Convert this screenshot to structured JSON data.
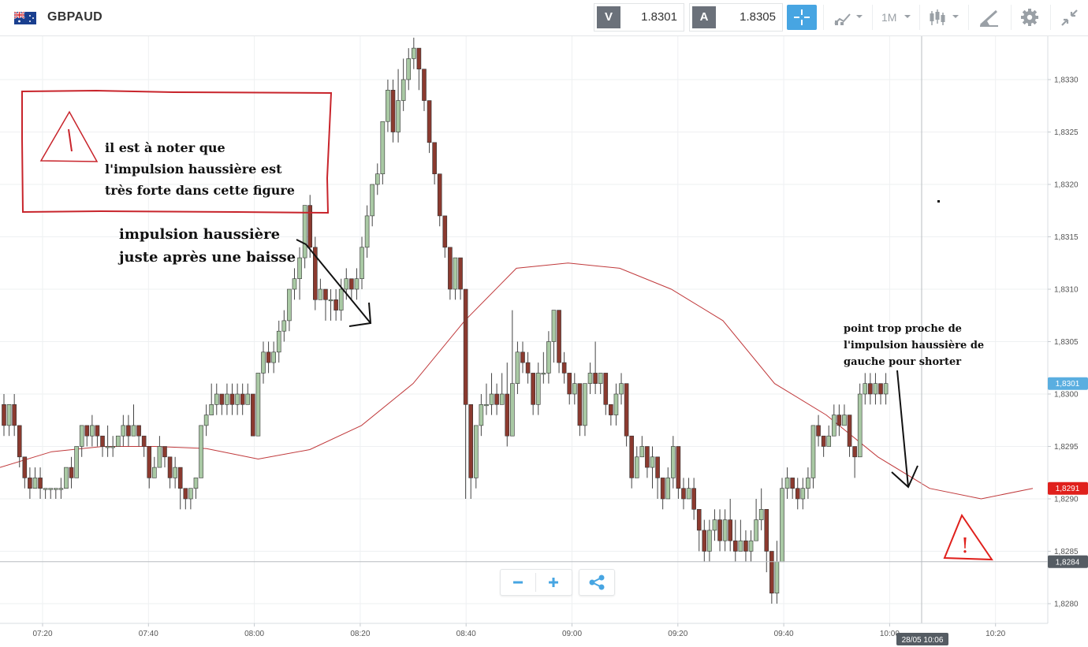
{
  "header": {
    "symbol": "GBPAUD",
    "sell_label": "V",
    "sell_price": "1.8301",
    "buy_label": "A",
    "buy_price": "1.8305",
    "timeframe": "1M",
    "icons": [
      "uk-au-flag-icon",
      "crosshair-icon",
      "chart-type-icon",
      "timeframe-dropdown",
      "candles-icon",
      "draw-tool-icon",
      "gear-icon",
      "collapse-icon"
    ]
  },
  "annotations": {
    "box_text": [
      "il est à noter que",
      "l'impulsion haussière est",
      "très forte dans cette figure"
    ],
    "arrow_text": [
      "impulsion haussière",
      "juste après une baisse"
    ],
    "right_text": [
      "point trop proche de",
      "l'impulsion haussière de",
      "gauche pour shorter"
    ],
    "warning_marker": "!"
  },
  "chart_data": {
    "type": "candlestick",
    "symbol": "GBPAUD",
    "timeframe": "1M",
    "ylim": [
      1.82785,
      1.83335
    ],
    "y_ticks": [
      "1,8280",
      "1,8285",
      "1,8290",
      "1,8295",
      "1,8300",
      "1,8305",
      "1,8310",
      "1,8315",
      "1,8320",
      "1,8325",
      "1,8330"
    ],
    "x_ticks": [
      "07:20",
      "07:40",
      "08:00",
      "08:20",
      "08:40",
      "09:00",
      "09:20",
      "09:40",
      "10:00",
      "10:20"
    ],
    "price_tags": [
      {
        "label": "1,8301",
        "value": 1.8301,
        "color": "#5aaee0"
      },
      {
        "label": "1,8291",
        "value": 1.8291,
        "color": "#e0201c"
      },
      {
        "label": "1,8284",
        "value": 1.8284,
        "color": "#555c63"
      }
    ],
    "crosshair_time": "28/05 10:06",
    "moving_average": [
      1.8293,
      1.82945,
      1.8295,
      1.8295,
      1.82948,
      1.82938,
      1.82947,
      1.8297,
      1.8301,
      1.8307,
      1.8312,
      1.83125,
      1.8312,
      1.831,
      1.8307,
      1.8301,
      1.8298,
      1.8294,
      1.8291,
      1.829,
      1.8291
    ],
    "candles": [
      [
        1.8299,
        1.8297,
        1.83,
        1.8296
      ],
      [
        1.8297,
        1.8299,
        1.8299,
        1.8296
      ],
      [
        1.8299,
        1.8297,
        1.83,
        1.8296
      ],
      [
        1.8297,
        1.8294,
        1.8297,
        1.8293
      ],
      [
        1.8294,
        1.8292,
        1.8294,
        1.8291
      ],
      [
        1.8292,
        1.8291,
        1.8293,
        1.829
      ],
      [
        1.8291,
        1.8292,
        1.8293,
        1.8291
      ],
      [
        1.8292,
        1.8291,
        1.8293,
        1.829
      ],
      [
        1.8291,
        1.8291,
        1.8291,
        1.829
      ],
      [
        1.8291,
        1.8291,
        1.8291,
        1.829
      ],
      [
        1.8291,
        1.8291,
        1.8291,
        1.829
      ],
      [
        1.8291,
        1.8291,
        1.8292,
        1.829
      ],
      [
        1.8291,
        1.8293,
        1.8293,
        1.8291
      ],
      [
        1.8293,
        1.8292,
        1.8294,
        1.8291
      ],
      [
        1.8292,
        1.8295,
        1.8295,
        1.8292
      ],
      [
        1.8295,
        1.8297,
        1.8297,
        1.8294
      ],
      [
        1.8297,
        1.8296,
        1.8297,
        1.8295
      ],
      [
        1.8296,
        1.8297,
        1.8298,
        1.8295
      ],
      [
        1.8297,
        1.8296,
        1.8297,
        1.8295
      ],
      [
        1.8296,
        1.8295,
        1.8296,
        1.8294
      ],
      [
        1.8295,
        1.8295,
        1.8297,
        1.8294
      ],
      [
        1.8295,
        1.8295,
        1.8296,
        1.8294
      ],
      [
        1.8295,
        1.8296,
        1.8296,
        1.8295
      ],
      [
        1.8296,
        1.8297,
        1.8298,
        1.8295
      ],
      [
        1.8297,
        1.8296,
        1.8298,
        1.8295
      ],
      [
        1.8296,
        1.8297,
        1.8299,
        1.8296
      ],
      [
        1.8297,
        1.8296,
        1.8297,
        1.8295
      ],
      [
        1.8296,
        1.8295,
        1.8296,
        1.8294
      ],
      [
        1.8295,
        1.8292,
        1.8295,
        1.8291
      ],
      [
        1.8292,
        1.8293,
        1.8294,
        1.8292
      ],
      [
        1.8293,
        1.8295,
        1.8296,
        1.8293
      ],
      [
        1.8295,
        1.8294,
        1.8295,
        1.8293
      ],
      [
        1.8294,
        1.8292,
        1.8294,
        1.8291
      ],
      [
        1.8292,
        1.8293,
        1.8294,
        1.8291
      ],
      [
        1.8293,
        1.8291,
        1.8293,
        1.8289
      ],
      [
        1.8291,
        1.829,
        1.8291,
        1.8289
      ],
      [
        1.829,
        1.8291,
        1.8291,
        1.8289
      ],
      [
        1.8291,
        1.8292,
        1.8292,
        1.829
      ],
      [
        1.8292,
        1.8297,
        1.8297,
        1.8292
      ],
      [
        1.8297,
        1.8298,
        1.8299,
        1.8296
      ],
      [
        1.8298,
        1.8299,
        1.8301,
        1.8298
      ],
      [
        1.8299,
        1.83,
        1.8301,
        1.8298
      ],
      [
        1.83,
        1.8299,
        1.83,
        1.8298
      ],
      [
        1.8299,
        1.83,
        1.8301,
        1.8298
      ],
      [
        1.83,
        1.8299,
        1.8301,
        1.8298
      ],
      [
        1.8299,
        1.83,
        1.8301,
        1.8298
      ],
      [
        1.83,
        1.8299,
        1.8301,
        1.8298
      ],
      [
        1.8299,
        1.83,
        1.8301,
        1.8299
      ],
      [
        1.83,
        1.8296,
        1.83,
        1.8296
      ],
      [
        1.8296,
        1.8302,
        1.8302,
        1.8296
      ],
      [
        1.8302,
        1.8304,
        1.8305,
        1.8301
      ],
      [
        1.8304,
        1.8303,
        1.8305,
        1.8302
      ],
      [
        1.8303,
        1.8304,
        1.8305,
        1.8302
      ],
      [
        1.8304,
        1.8306,
        1.8307,
        1.8303
      ],
      [
        1.8306,
        1.8307,
        1.8308,
        1.8305
      ],
      [
        1.8307,
        1.831,
        1.831,
        1.8306
      ],
      [
        1.831,
        1.8311,
        1.8312,
        1.8309
      ],
      [
        1.8311,
        1.8313,
        1.8314,
        1.8309
      ],
      [
        1.8313,
        1.8318,
        1.8318,
        1.8312
      ],
      [
        1.8318,
        1.8314,
        1.8319,
        1.8313
      ],
      [
        1.8314,
        1.8309,
        1.8315,
        1.8308
      ],
      [
        1.8309,
        1.831,
        1.8311,
        1.8309
      ],
      [
        1.831,
        1.8309,
        1.831,
        1.8307
      ],
      [
        1.8309,
        1.8309,
        1.831,
        1.8307
      ],
      [
        1.8309,
        1.8308,
        1.831,
        1.8307
      ],
      [
        1.8308,
        1.831,
        1.8311,
        1.8307
      ],
      [
        1.831,
        1.8311,
        1.8312,
        1.8309
      ],
      [
        1.8311,
        1.831,
        1.8311,
        1.8309
      ],
      [
        1.831,
        1.8311,
        1.8312,
        1.8309
      ],
      [
        1.8311,
        1.8314,
        1.8315,
        1.831
      ],
      [
        1.8314,
        1.8317,
        1.8318,
        1.8313
      ],
      [
        1.8317,
        1.832,
        1.832,
        1.8316
      ],
      [
        1.832,
        1.8321,
        1.8322,
        1.8319
      ],
      [
        1.8321,
        1.8326,
        1.8326,
        1.832
      ],
      [
        1.8326,
        1.8329,
        1.833,
        1.8325
      ],
      [
        1.8329,
        1.8325,
        1.833,
        1.8324
      ],
      [
        1.8325,
        1.8328,
        1.8331,
        1.8324
      ],
      [
        1.8328,
        1.833,
        1.8332,
        1.8327
      ],
      [
        1.833,
        1.8332,
        1.8333,
        1.8329
      ],
      [
        1.8332,
        1.8333,
        1.8334,
        1.8331
      ],
      [
        1.8333,
        1.8331,
        1.8333,
        1.8329
      ],
      [
        1.8331,
        1.8328,
        1.8331,
        1.8327
      ],
      [
        1.8328,
        1.8324,
        1.8328,
        1.8323
      ],
      [
        1.8324,
        1.8321,
        1.8324,
        1.832
      ],
      [
        1.8321,
        1.8317,
        1.8321,
        1.8316
      ],
      [
        1.8317,
        1.8314,
        1.8317,
        1.8313
      ],
      [
        1.8314,
        1.831,
        1.8314,
        1.8309
      ],
      [
        1.831,
        1.8313,
        1.8313,
        1.8309
      ],
      [
        1.8313,
        1.831,
        1.8313,
        1.8309
      ],
      [
        1.831,
        1.8299,
        1.831,
        1.829
      ],
      [
        1.8299,
        1.8292,
        1.8299,
        1.829
      ],
      [
        1.8292,
        1.8297,
        1.8297,
        1.8291
      ],
      [
        1.8297,
        1.8299,
        1.83,
        1.8296
      ],
      [
        1.8299,
        1.8299,
        1.8301,
        1.8298
      ],
      [
        1.8299,
        1.83,
        1.8302,
        1.8298
      ],
      [
        1.83,
        1.8299,
        1.8301,
        1.8298
      ],
      [
        1.8299,
        1.83,
        1.8302,
        1.8299
      ],
      [
        1.83,
        1.8296,
        1.8303,
        1.8295
      ],
      [
        1.8296,
        1.8301,
        1.8308,
        1.8296
      ],
      [
        1.8301,
        1.8304,
        1.8305,
        1.83
      ],
      [
        1.8304,
        1.8303,
        1.8305,
        1.8302
      ],
      [
        1.8303,
        1.8302,
        1.8304,
        1.8301
      ],
      [
        1.8302,
        1.8299,
        1.8302,
        1.8298
      ],
      [
        1.8299,
        1.8302,
        1.8303,
        1.8298
      ],
      [
        1.8302,
        1.8302,
        1.8304,
        1.8301
      ],
      [
        1.8302,
        1.8305,
        1.8306,
        1.8301
      ],
      [
        1.8305,
        1.8308,
        1.8308,
        1.8303
      ],
      [
        1.8308,
        1.8303,
        1.8308,
        1.8302
      ],
      [
        1.8303,
        1.8302,
        1.8304,
        1.8301
      ],
      [
        1.8302,
        1.83,
        1.8302,
        1.8299
      ],
      [
        1.83,
        1.8301,
        1.8302,
        1.8299
      ],
      [
        1.8301,
        1.8297,
        1.8301,
        1.8296
      ],
      [
        1.8297,
        1.8301,
        1.8301,
        1.8296
      ],
      [
        1.8301,
        1.8302,
        1.8303,
        1.83
      ],
      [
        1.8302,
        1.8301,
        1.8305,
        1.83
      ],
      [
        1.8301,
        1.8302,
        1.8302,
        1.83
      ],
      [
        1.8302,
        1.8299,
        1.8302,
        1.8298
      ],
      [
        1.8299,
        1.8298,
        1.8299,
        1.8297
      ],
      [
        1.8298,
        1.83,
        1.8301,
        1.8297
      ],
      [
        1.83,
        1.8301,
        1.8302,
        1.8299
      ],
      [
        1.8301,
        1.8296,
        1.8301,
        1.8295
      ],
      [
        1.8296,
        1.8292,
        1.8296,
        1.8291
      ],
      [
        1.8292,
        1.8294,
        1.8295,
        1.8292
      ],
      [
        1.8294,
        1.8295,
        1.8296,
        1.8294
      ],
      [
        1.8295,
        1.8293,
        1.8295,
        1.8292
      ],
      [
        1.8293,
        1.8294,
        1.8295,
        1.8291
      ],
      [
        1.8294,
        1.8292,
        1.8294,
        1.829
      ],
      [
        1.8292,
        1.829,
        1.8292,
        1.8289
      ],
      [
        1.829,
        1.8292,
        1.8293,
        1.829
      ],
      [
        1.8292,
        1.8295,
        1.8296,
        1.8291
      ],
      [
        1.8295,
        1.8291,
        1.8295,
        1.829
      ],
      [
        1.8291,
        1.829,
        1.8292,
        1.8289
      ],
      [
        1.829,
        1.8291,
        1.8292,
        1.829
      ],
      [
        1.8291,
        1.8289,
        1.8292,
        1.8288
      ],
      [
        1.8289,
        1.8287,
        1.8289,
        1.8285
      ],
      [
        1.8287,
        1.8285,
        1.8288,
        1.8284
      ],
      [
        1.8285,
        1.8287,
        1.8288,
        1.8284
      ],
      [
        1.8287,
        1.8288,
        1.8289,
        1.8286
      ],
      [
        1.8288,
        1.8286,
        1.8289,
        1.8285
      ],
      [
        1.8286,
        1.8288,
        1.8289,
        1.8285
      ],
      [
        1.8288,
        1.8286,
        1.829,
        1.8285
      ],
      [
        1.8286,
        1.8285,
        1.8288,
        1.8284
      ],
      [
        1.8285,
        1.8286,
        1.8288,
        1.8285
      ],
      [
        1.8286,
        1.8285,
        1.8287,
        1.8284
      ],
      [
        1.8285,
        1.8286,
        1.8287,
        1.8284
      ],
      [
        1.8286,
        1.8288,
        1.829,
        1.8286
      ],
      [
        1.8288,
        1.8289,
        1.8291,
        1.8287
      ],
      [
        1.8289,
        1.8285,
        1.8289,
        1.8283
      ],
      [
        1.8285,
        1.8281,
        1.8285,
        1.828
      ],
      [
        1.8281,
        1.8284,
        1.8286,
        1.828
      ],
      [
        1.8284,
        1.8291,
        1.8292,
        1.8284
      ],
      [
        1.8291,
        1.8292,
        1.8293,
        1.829
      ],
      [
        1.8292,
        1.8291,
        1.8292,
        1.829
      ],
      [
        1.8291,
        1.829,
        1.8292,
        1.8289
      ],
      [
        1.829,
        1.8291,
        1.8292,
        1.8289
      ],
      [
        1.8291,
        1.8292,
        1.8293,
        1.829
      ],
      [
        1.8292,
        1.8297,
        1.8297,
        1.8291
      ],
      [
        1.8297,
        1.8296,
        1.8298,
        1.8295
      ],
      [
        1.8296,
        1.8295,
        1.8296,
        1.8294
      ],
      [
        1.8295,
        1.8296,
        1.8297,
        1.8295
      ],
      [
        1.8296,
        1.8298,
        1.8299,
        1.8296
      ],
      [
        1.8298,
        1.8297,
        1.8299,
        1.8296
      ],
      [
        1.8297,
        1.8298,
        1.8299,
        1.8297
      ],
      [
        1.8298,
        1.8295,
        1.8298,
        1.8294
      ],
      [
        1.8295,
        1.8294,
        1.8295,
        1.8292
      ],
      [
        1.8294,
        1.83,
        1.8301,
        1.8294
      ],
      [
        1.83,
        1.8301,
        1.8302,
        1.8299
      ],
      [
        1.8301,
        1.83,
        1.8302,
        1.8299
      ],
      [
        1.83,
        1.8301,
        1.8302,
        1.8299
      ],
      [
        1.8301,
        1.83,
        1.8301,
        1.8299
      ],
      [
        1.83,
        1.8301,
        1.8302,
        1.8299
      ]
    ]
  }
}
